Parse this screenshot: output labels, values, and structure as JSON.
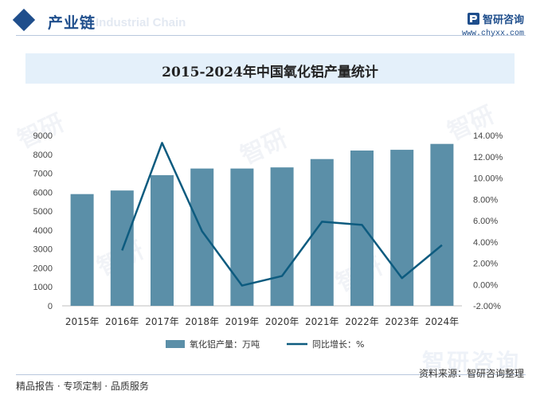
{
  "header": {
    "section_title": "产业链",
    "section_title_ghost": "Industrial Chain",
    "brand_name": "智研咨询",
    "brand_url": "www.chyxx.com"
  },
  "chart_data": {
    "type": "bar",
    "title": "2015-2024年中国氧化铝产量统计",
    "categories": [
      "2015年",
      "2016年",
      "2017年",
      "2018年",
      "2019年",
      "2020年",
      "2021年",
      "2022年",
      "2023年",
      "2024年"
    ],
    "series": [
      {
        "name": "氧化铝产量：万吨",
        "type": "bar",
        "axis": "left",
        "color": "#5b8fa8",
        "values": [
          5900,
          6090,
          6900,
          7250,
          7250,
          7310,
          7750,
          8200,
          8240,
          8550
        ]
      },
      {
        "name": "同比增长：%",
        "type": "line",
        "axis": "right",
        "color": "#0d5b7f",
        "values": [
          null,
          3.2,
          13.3,
          5.0,
          -0.1,
          0.8,
          5.9,
          5.6,
          0.6,
          3.7
        ]
      }
    ],
    "left_axis": {
      "min": 0,
      "max": 9000,
      "step": 1000,
      "ticks": [
        "0",
        "1000",
        "2000",
        "3000",
        "4000",
        "5000",
        "6000",
        "7000",
        "8000",
        "9000"
      ]
    },
    "right_axis": {
      "min": -2,
      "max": 14,
      "step": 2,
      "ticks": [
        "-2.00%",
        "0.00%",
        "2.00%",
        "4.00%",
        "6.00%",
        "8.00%",
        "10.00%",
        "12.00%",
        "14.00%"
      ]
    },
    "grid": false,
    "legend": "bottom"
  },
  "footer": {
    "left_text": "精品报告 · 专项定制 · 品质服务",
    "right_text": "资料来源：智研咨询整理",
    "logo_ghost": "智研咨询"
  },
  "colors": {
    "brand": "#1f4e8c",
    "bar": "#5b8fa8",
    "line": "#0d5b7f",
    "banner": "#e4f0fa"
  }
}
